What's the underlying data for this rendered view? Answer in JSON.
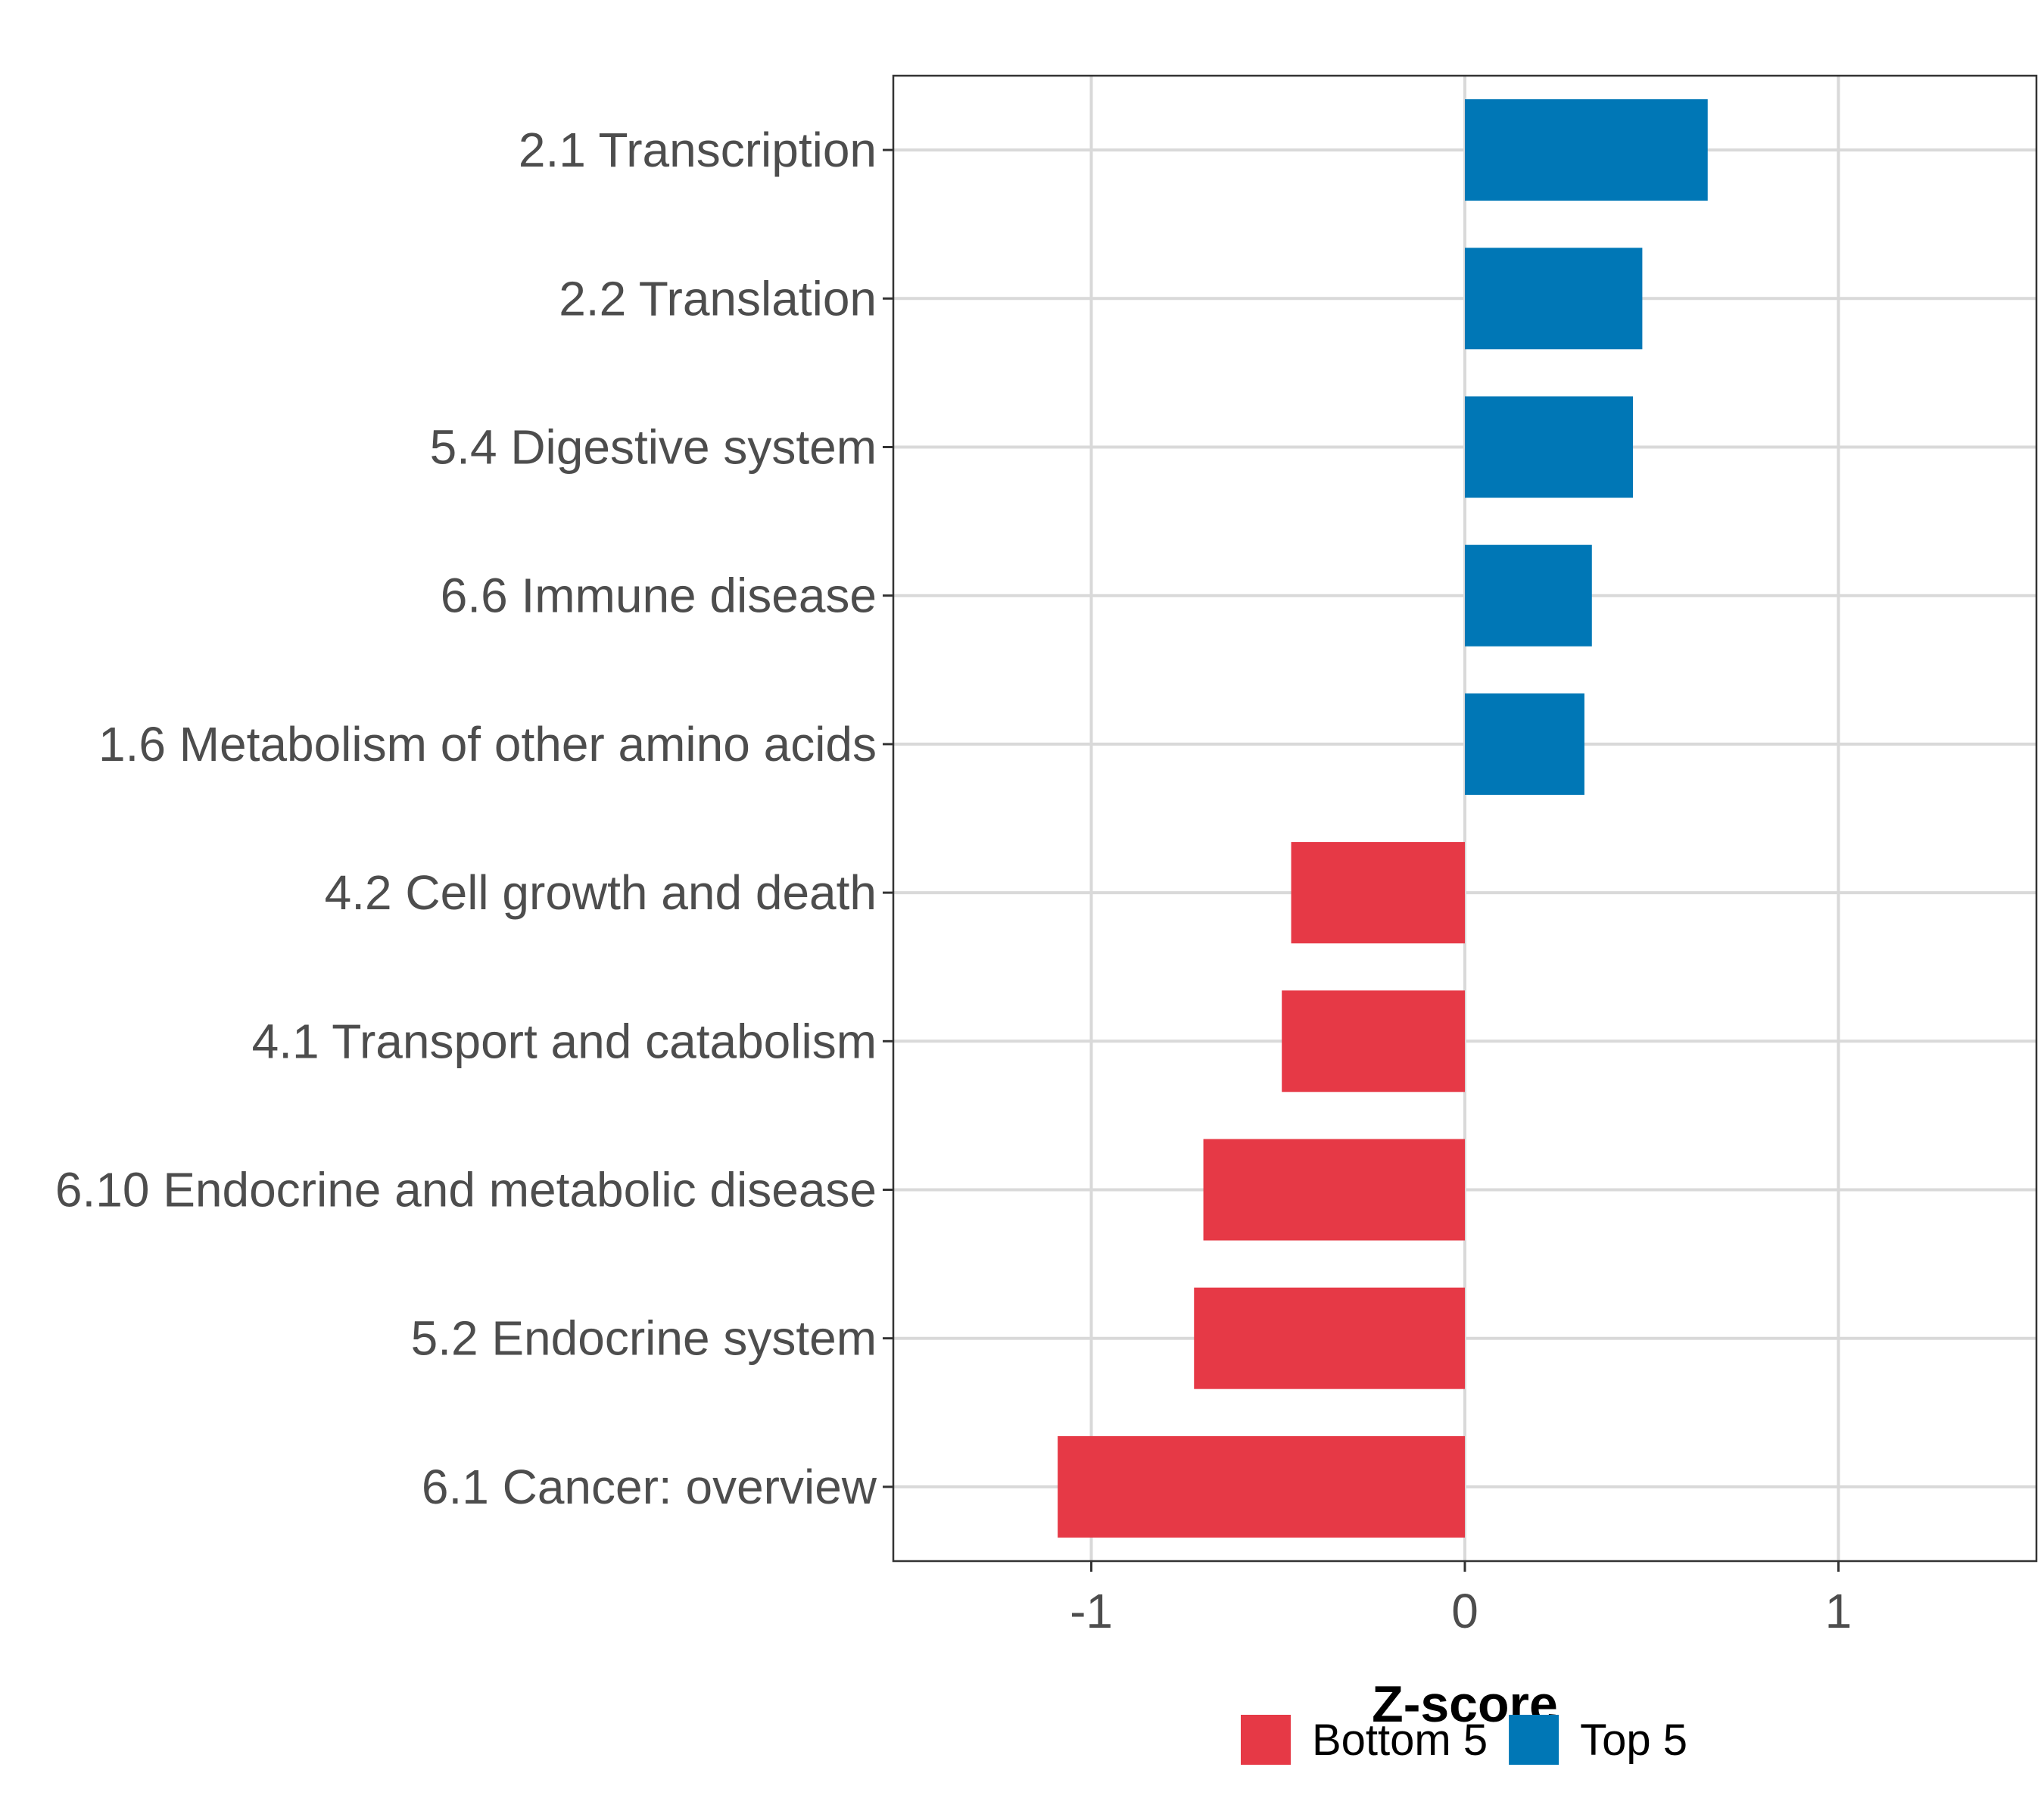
{
  "chart_data": {
    "type": "bar",
    "orientation": "horizontal",
    "title": "",
    "xlabel": "Z-score",
    "ylabel": "",
    "xlim": [
      -1.53,
      1.53
    ],
    "xticks": [
      {
        "value": -1,
        "label": "-1"
      },
      {
        "value": 0,
        "label": "0"
      },
      {
        "value": 1,
        "label": "1"
      }
    ],
    "grid": true,
    "categories": [
      "2.1 Transcription",
      "2.2 Translation",
      "5.4 Digestive system",
      "6.6 Immune disease",
      "1.6 Metabolism of other amino acids",
      "4.2 Cell growth and death",
      "4.1 Transport and catabolism",
      "6.10 Endocrine and metabolic disease",
      "5.2 Endocrine system",
      "6.1 Cancer: overview"
    ],
    "values": [
      0.65,
      0.475,
      0.45,
      0.34,
      0.32,
      -0.465,
      -0.49,
      -0.7,
      -0.725,
      -1.09
    ],
    "groups": [
      "Top 5",
      "Top 5",
      "Top 5",
      "Top 5",
      "Top 5",
      "Bottom 5",
      "Bottom 5",
      "Bottom 5",
      "Bottom 5",
      "Bottom 5"
    ],
    "legend": {
      "position": "bottom",
      "entries": [
        {
          "label": "Bottom 5",
          "color": "#e63946"
        },
        {
          "label": "Top 5",
          "color": "#0077b6"
        }
      ]
    }
  }
}
